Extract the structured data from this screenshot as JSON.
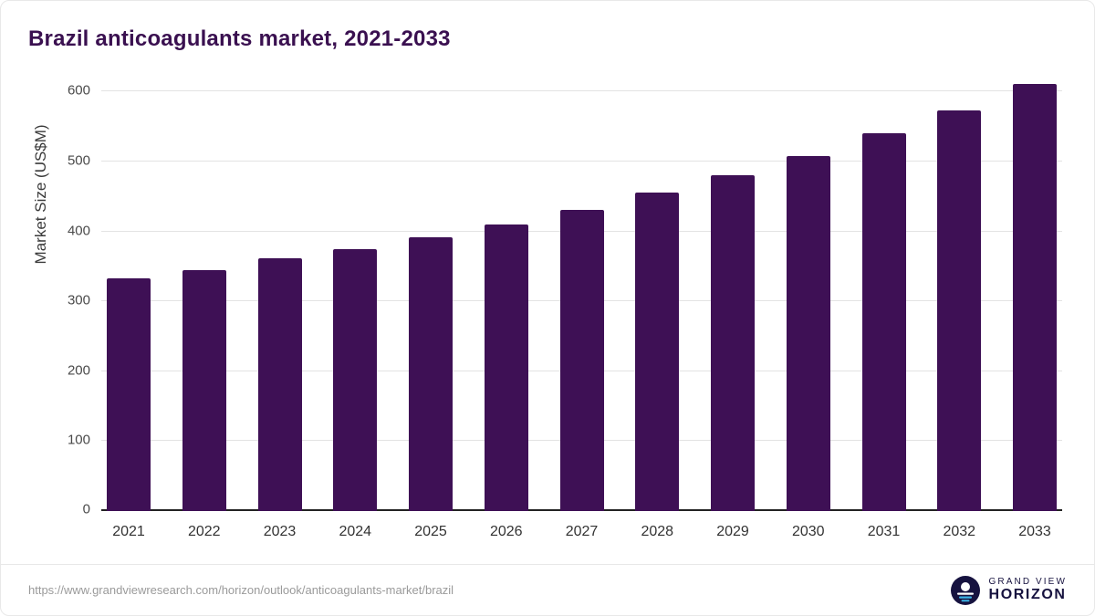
{
  "title": "Brazil anticoagulants market, 2021-2033",
  "chart_data": {
    "type": "bar",
    "categories": [
      "2021",
      "2022",
      "2023",
      "2024",
      "2025",
      "2026",
      "2027",
      "2028",
      "2029",
      "2030",
      "2031",
      "2032",
      "2033"
    ],
    "values": [
      333,
      345,
      362,
      375,
      392,
      410,
      431,
      455,
      481,
      508,
      540,
      573,
      611
    ],
    "title": "Brazil anticoagulants market, 2021-2033",
    "xlabel": "",
    "ylabel": "Market Size (US$M)",
    "ylim": [
      0,
      620
    ],
    "yticks": [
      0,
      100,
      200,
      300,
      400,
      500,
      600
    ],
    "bar_color": "#3e1055",
    "grid": true,
    "legend": "none"
  },
  "footer": {
    "source_url": "https://www.grandviewresearch.com/horizon/outlook/anticoagulants-market/brazil",
    "brand_top": "GRAND VIEW",
    "brand_bottom": "HORIZON"
  },
  "colors": {
    "bar": "#3e1055",
    "title": "#3a1050",
    "gridline": "#e3e3e3",
    "axis": "#222222",
    "brand_navy": "#16123f",
    "brand_blue": "#3bb3e6"
  }
}
